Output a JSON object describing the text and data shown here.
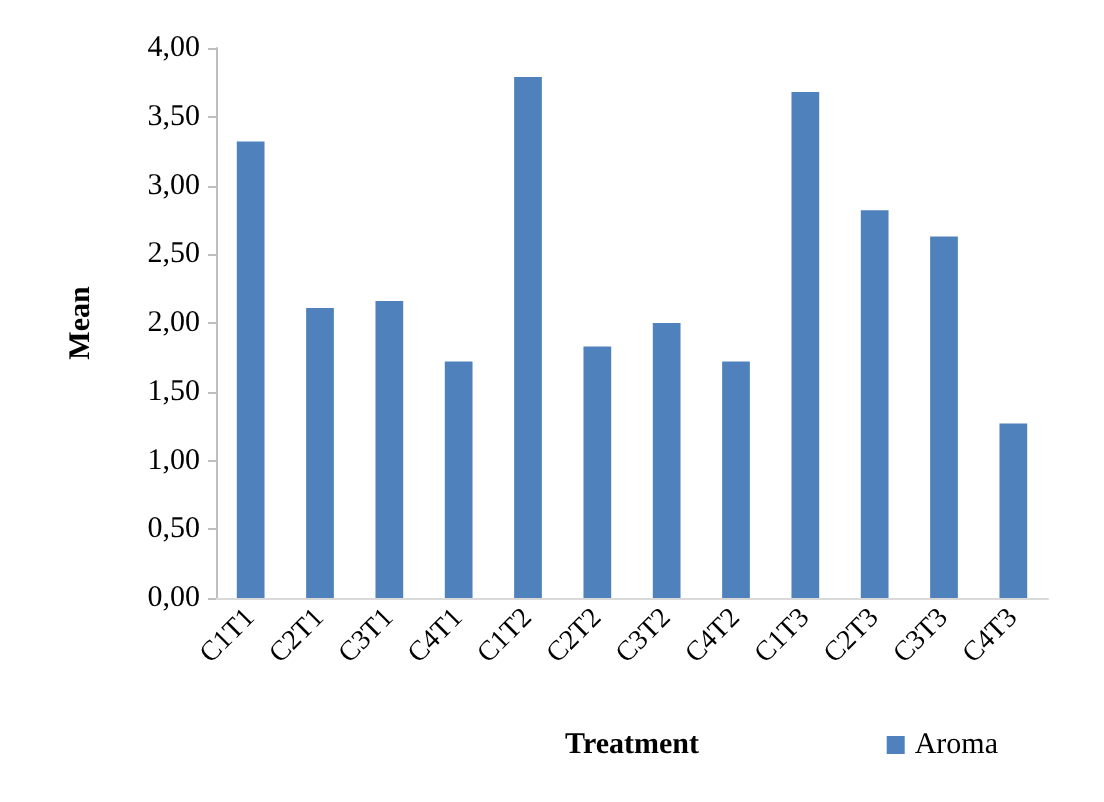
{
  "chart_data": {
    "type": "bar",
    "xlabel": "Treatment",
    "ylabel": "Mean",
    "categories": [
      "C1T1",
      "C2T1",
      "C3T1",
      "C4T1",
      "C1T2",
      "C2T2",
      "C3T2",
      "C4T2",
      "C1T3",
      "C2T3",
      "C3T3",
      "C4T3"
    ],
    "series": [
      {
        "name": "Aroma",
        "color": "#4f81bd",
        "values": [
          3.32,
          2.11,
          2.16,
          1.72,
          3.79,
          1.83,
          2.0,
          1.72,
          3.68,
          2.82,
          2.63,
          1.27
        ]
      }
    ],
    "ylim": [
      0,
      4
    ],
    "yticks": [
      {
        "value": 0,
        "label": "0,00"
      },
      {
        "value": 0.5,
        "label": "0,50"
      },
      {
        "value": 1,
        "label": "1,00"
      },
      {
        "value": 1.5,
        "label": "1,50"
      },
      {
        "value": 2,
        "label": "2,00"
      },
      {
        "value": 2.5,
        "label": "2,50"
      },
      {
        "value": 3,
        "label": "3,00"
      },
      {
        "value": 3.5,
        "label": "3,50"
      },
      {
        "value": 4,
        "label": "4,00"
      }
    ],
    "grid": false,
    "legend": "bottom right"
  }
}
